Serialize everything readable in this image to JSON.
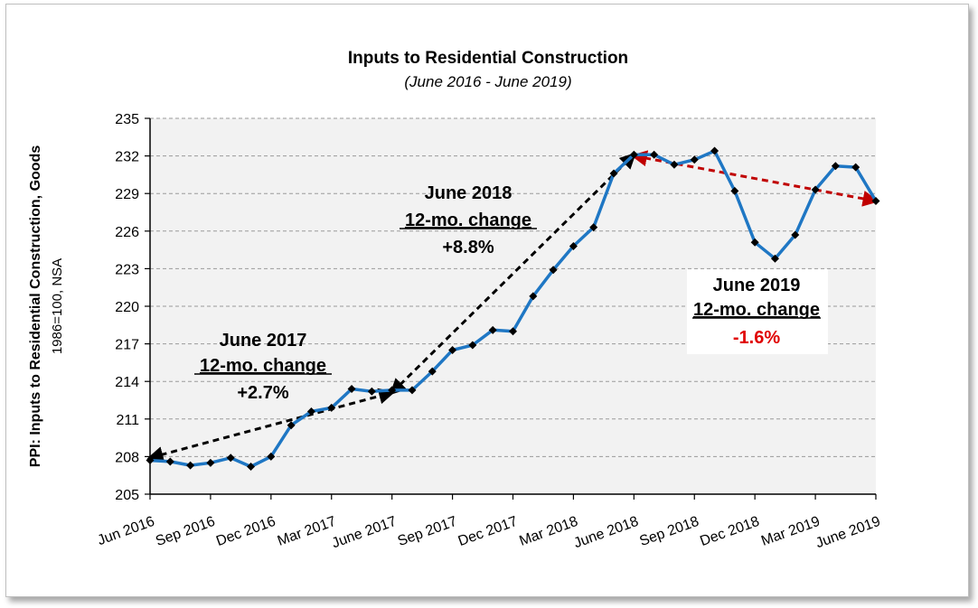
{
  "chart_data": {
    "type": "line",
    "title": "Inputs to Residential Construction",
    "subtitle": "(June 2016 - June 2019)",
    "ylabel": "PPI: Inputs to Residential Construction, Goods",
    "ylabel_sub": "1986=100, NSA",
    "ylim": [
      205,
      235
    ],
    "yticks": [
      205,
      208,
      211,
      214,
      217,
      220,
      223,
      226,
      229,
      232,
      235
    ],
    "xtick_labels": [
      "Jun 2016",
      "Sep 2016",
      "Dec 2016",
      "Mar 2017",
      "June 2017",
      "Sep 2017",
      "Dec 2017",
      "Mar 2018",
      "June 2018",
      "Sep 2018",
      "Dec 2018",
      "Mar 2019",
      "June 2019"
    ],
    "grid": true,
    "series": [
      {
        "name": "PPI: Inputs to Residential Construction, Goods",
        "color": "#1f77c4",
        "values": [
          207.7,
          207.6,
          207.3,
          207.5,
          207.9,
          207.2,
          208.0,
          210.5,
          211.6,
          211.9,
          213.4,
          213.2,
          213.3,
          213.3,
          214.8,
          216.5,
          216.9,
          218.1,
          218.0,
          220.8,
          222.9,
          224.8,
          226.3,
          230.6,
          232.1,
          232.1,
          231.3,
          231.7,
          232.4,
          229.2,
          225.1,
          223.8,
          225.7,
          229.3,
          231.2,
          231.1,
          228.4
        ]
      }
    ],
    "trend_lines": [
      {
        "from_index": 0,
        "from_value": 207.9,
        "to_index": 12,
        "to_value": 213.1,
        "color": "#000000"
      },
      {
        "from_index": 12,
        "from_value": 213.1,
        "to_index": 24,
        "to_value": 232.1,
        "color": "#000000"
      },
      {
        "from_index": 24,
        "from_value": 232.0,
        "to_index": 36,
        "to_value": 228.4,
        "color": "#c00000"
      }
    ],
    "annotations": [
      {
        "id": "a2017",
        "line1": "June 2017",
        "line2": "12-mo. change",
        "line3": "+2.7%",
        "line3_color": "#000000"
      },
      {
        "id": "a2018",
        "line1": "June 2018",
        "line2": "12-mo. change",
        "line3": "+8.8%",
        "line3_color": "#000000"
      },
      {
        "id": "a2019",
        "line1": "June 2019",
        "line2": "12-mo. change",
        "line3": "-1.6%",
        "line3_color": "#e00000"
      }
    ]
  }
}
